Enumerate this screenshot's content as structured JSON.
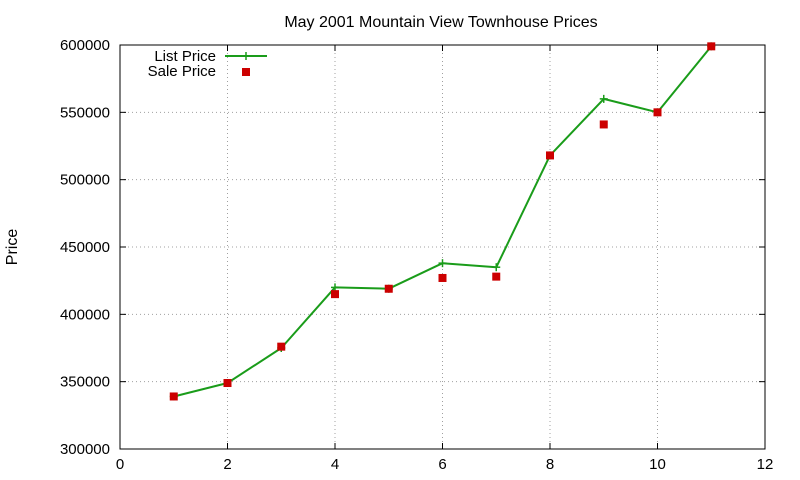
{
  "chart_data": {
    "type": "line",
    "title": "May 2001 Mountain View Townhouse Prices",
    "xlabel": "",
    "ylabel": "Price",
    "xlim": [
      0,
      12
    ],
    "ylim": [
      300000,
      600000
    ],
    "x_ticks": [
      0,
      2,
      4,
      6,
      8,
      10,
      12
    ],
    "y_ticks": [
      300000,
      350000,
      400000,
      450000,
      500000,
      550000,
      600000
    ],
    "grid": true,
    "legend_position": "top-left",
    "series": [
      {
        "name": "List Price",
        "style": "line-with-plus-markers",
        "color": "#1a9c1a",
        "x": [
          1,
          2,
          3,
          4,
          5,
          6,
          7,
          8,
          9,
          10,
          11
        ],
        "y": [
          339000,
          349000,
          375000,
          420000,
          419000,
          438000,
          435000,
          518000,
          560000,
          550000,
          599000
        ]
      },
      {
        "name": "Sale Price",
        "style": "square-markers",
        "color": "#cc0000",
        "x": [
          1,
          2,
          3,
          4,
          5,
          6,
          7,
          8,
          9,
          10,
          11
        ],
        "y": [
          339000,
          349000,
          376000,
          415000,
          419000,
          427000,
          428000,
          518000,
          541000,
          550000,
          599000
        ]
      }
    ]
  }
}
